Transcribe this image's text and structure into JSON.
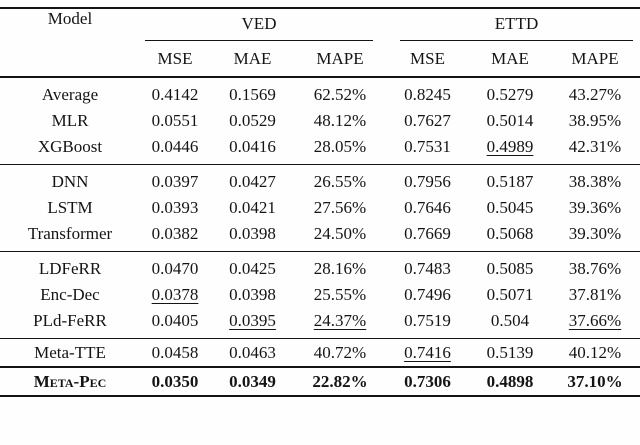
{
  "table": {
    "header": {
      "model": "Model",
      "datasets": [
        {
          "label": "VED"
        },
        {
          "label": "ETTD"
        }
      ],
      "metrics": [
        "MSE",
        "MAE",
        "MAPE",
        "MSE",
        "MAE",
        "MAPE"
      ]
    },
    "groups": [
      {
        "rule_above": "none",
        "rows": [
          {
            "model": "Average",
            "values": [
              "0.4142",
              "0.1569",
              "62.52%",
              "0.8245",
              "0.5279",
              "43.27%"
            ],
            "underline": [],
            "bold": false,
            "smallcaps": false
          },
          {
            "model": "MLR",
            "values": [
              "0.0551",
              "0.0529",
              "48.12%",
              "0.7627",
              "0.5014",
              "38.95%"
            ],
            "underline": [],
            "bold": false,
            "smallcaps": false
          },
          {
            "model": "XGBoost",
            "values": [
              "0.0446",
              "0.0416",
              "28.05%",
              "0.7531",
              "0.4989",
              "42.31%"
            ],
            "underline": [
              4
            ],
            "bold": false,
            "smallcaps": false
          }
        ]
      },
      {
        "rule_above": "thin",
        "rows": [
          {
            "model": "DNN",
            "values": [
              "0.0397",
              "0.0427",
              "26.55%",
              "0.7956",
              "0.5187",
              "38.38%"
            ],
            "underline": [],
            "bold": false,
            "smallcaps": false
          },
          {
            "model": "LSTM",
            "values": [
              "0.0393",
              "0.0421",
              "27.56%",
              "0.7646",
              "0.5045",
              "39.36%"
            ],
            "underline": [],
            "bold": false,
            "smallcaps": false
          },
          {
            "model": "Transformer",
            "values": [
              "0.0382",
              "0.0398",
              "24.50%",
              "0.7669",
              "0.5068",
              "39.30%"
            ],
            "underline": [],
            "bold": false,
            "smallcaps": false
          }
        ]
      },
      {
        "rule_above": "thin",
        "rows": [
          {
            "model": "LDFeRR",
            "values": [
              "0.0470",
              "0.0425",
              "28.16%",
              "0.7483",
              "0.5085",
              "38.76%"
            ],
            "underline": [],
            "bold": false,
            "smallcaps": false
          },
          {
            "model": "Enc-Dec",
            "values": [
              "0.0378",
              "0.0398",
              "25.55%",
              "0.7496",
              "0.5071",
              "37.81%"
            ],
            "underline": [
              0
            ],
            "bold": false,
            "smallcaps": false
          },
          {
            "model": "PLd-FeRR",
            "values": [
              "0.0405",
              "0.0395",
              "24.37%",
              "0.7519",
              "0.504",
              "37.66%"
            ],
            "underline": [
              1,
              2,
              5
            ],
            "bold": false,
            "smallcaps": false
          }
        ]
      },
      {
        "rule_above": "thin",
        "rows": [
          {
            "model": "Meta-TTE",
            "values": [
              "0.0458",
              "0.0463",
              "40.72%",
              "0.7416",
              "0.5139",
              "40.12%"
            ],
            "underline": [
              3
            ],
            "bold": false,
            "smallcaps": false
          }
        ]
      },
      {
        "rule_above": "thick",
        "rows": [
          {
            "model": "Meta-Pec",
            "values": [
              "0.0350",
              "0.0349",
              "22.82%",
              "0.7306",
              "0.4898",
              "37.10%"
            ],
            "underline": [],
            "bold": true,
            "smallcaps": true
          }
        ]
      }
    ]
  }
}
